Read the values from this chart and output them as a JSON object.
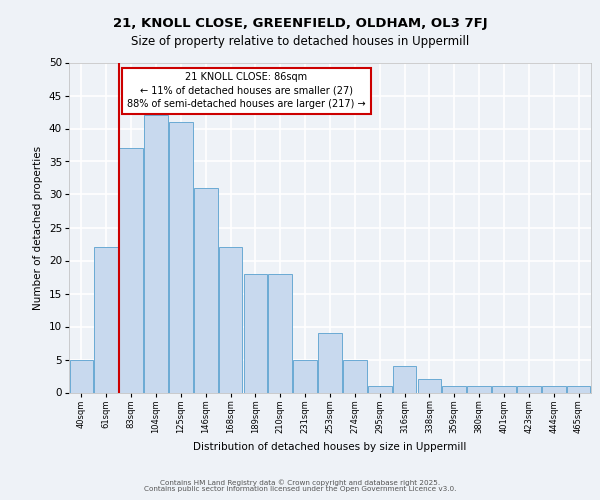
{
  "title1": "21, KNOLL CLOSE, GREENFIELD, OLDHAM, OL3 7FJ",
  "title2": "Size of property relative to detached houses in Uppermill",
  "xlabel": "Distribution of detached houses by size in Uppermill",
  "ylabel": "Number of detached properties",
  "categories": [
    "40sqm",
    "61sqm",
    "83sqm",
    "104sqm",
    "125sqm",
    "146sqm",
    "168sqm",
    "189sqm",
    "210sqm",
    "231sqm",
    "253sqm",
    "274sqm",
    "295sqm",
    "316sqm",
    "338sqm",
    "359sqm",
    "380sqm",
    "401sqm",
    "423sqm",
    "444sqm",
    "465sqm"
  ],
  "values": [
    5,
    22,
    37,
    42,
    41,
    31,
    22,
    18,
    18,
    5,
    9,
    5,
    1,
    4,
    2,
    1,
    1,
    1,
    1,
    1,
    1
  ],
  "bar_color": "#c8d9ee",
  "bar_edgecolor": "#6aaad4",
  "red_line_index": 2,
  "annotation_title": "21 KNOLL CLOSE: 86sqm",
  "annotation_line1": "← 11% of detached houses are smaller (27)",
  "annotation_line2": "88% of semi-detached houses are larger (217) →",
  "footer1": "Contains HM Land Registry data © Crown copyright and database right 2025.",
  "footer2": "Contains public sector information licensed under the Open Government Licence v3.0.",
  "ylim": [
    0,
    50
  ],
  "background_color": "#eef2f7",
  "grid_color": "#ffffff",
  "annotation_box_color": "#ffffff",
  "annotation_border_color": "#cc0000"
}
